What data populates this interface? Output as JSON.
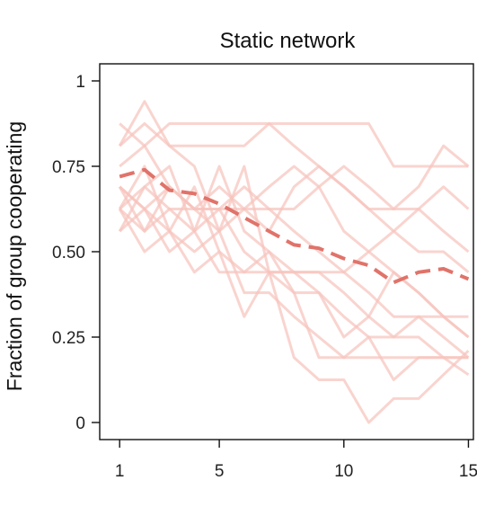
{
  "chart_data": {
    "type": "line",
    "title": "Static network",
    "xlabel": "",
    "ylabel": "Fraction of group cooperating",
    "xlim": [
      0.2,
      15.2
    ],
    "ylim": [
      -0.05,
      1.05
    ],
    "x_ticks": [
      1,
      5,
      10,
      15
    ],
    "y_ticks": [
      {
        "value": 0,
        "label": "0"
      },
      {
        "value": 0.25,
        "label": "0.25"
      },
      {
        "value": 0.5,
        "label": "0.50"
      },
      {
        "value": 0.75,
        "label": "0.75"
      },
      {
        "value": 1,
        "label": "1"
      }
    ],
    "grid": false,
    "colors": {
      "groups": "#f6c4bd",
      "mean": "#e0736a"
    },
    "x": [
      1,
      2,
      3,
      4,
      5,
      6,
      7,
      8,
      9,
      10,
      11,
      12,
      13,
      14,
      15
    ],
    "series": [
      {
        "values": [
          0.81,
          0.875,
          0.81,
          0.81,
          0.81,
          0.81,
          0.875,
          0.875,
          0.875,
          0.875,
          0.875,
          0.75,
          0.75,
          0.75,
          0.75
        ]
      },
      {
        "values": [
          0.875,
          0.81,
          0.875,
          0.875,
          0.875,
          0.875,
          0.875,
          0.81,
          0.75,
          0.69,
          0.625,
          0.625,
          0.625,
          0.69,
          0.625
        ]
      },
      {
        "values": [
          0.81,
          0.94,
          0.81,
          0.75,
          0.56,
          0.625,
          0.69,
          0.75,
          0.69,
          0.75,
          0.69,
          0.625,
          0.69,
          0.81,
          0.75
        ]
      },
      {
        "values": [
          0.75,
          0.81,
          0.69,
          0.625,
          0.69,
          0.625,
          0.56,
          0.69,
          0.75,
          0.69,
          0.625,
          0.56,
          0.625,
          0.56,
          0.5
        ]
      },
      {
        "values": [
          0.69,
          0.625,
          0.69,
          0.625,
          0.625,
          0.625,
          0.625,
          0.625,
          0.69,
          0.56,
          0.5,
          0.56,
          0.5,
          0.5,
          0.44
        ]
      },
      {
        "values": [
          0.625,
          0.69,
          0.75,
          0.56,
          0.625,
          0.69,
          0.625,
          0.56,
          0.5,
          0.44,
          0.5,
          0.44,
          0.38,
          0.31,
          0.25
        ]
      },
      {
        "values": [
          0.625,
          0.56,
          0.625,
          0.56,
          0.75,
          0.56,
          0.5,
          0.44,
          0.44,
          0.44,
          0.38,
          0.31,
          0.31,
          0.25,
          0.19
        ]
      },
      {
        "values": [
          0.56,
          0.625,
          0.56,
          0.69,
          0.5,
          0.44,
          0.5,
          0.38,
          0.38,
          0.31,
          0.25,
          0.25,
          0.31,
          0.31,
          0.25
        ]
      },
      {
        "values": [
          0.69,
          0.56,
          0.69,
          0.625,
          0.625,
          0.5,
          0.44,
          0.44,
          0.38,
          0.25,
          0.31,
          0.25,
          0.25,
          0.19,
          0.19
        ]
      },
      {
        "values": [
          0.625,
          0.5,
          0.56,
          0.5,
          0.56,
          0.38,
          0.38,
          0.31,
          0.25,
          0.19,
          0.19,
          0.19,
          0.19,
          0.19,
          0.14
        ]
      },
      {
        "values": [
          0.625,
          0.75,
          0.56,
          0.44,
          0.5,
          0.31,
          0.44,
          0.38,
          0.19,
          0.19,
          0.25,
          0.125,
          0.19,
          0.19,
          0.19
        ]
      },
      {
        "values": [
          0.69,
          0.625,
          0.5,
          0.56,
          0.44,
          0.44,
          0.44,
          0.19,
          0.125,
          0.125,
          0.0,
          0.07,
          0.07,
          0.14,
          0.21
        ]
      },
      {
        "values": [
          0.56,
          0.69,
          0.625,
          0.625,
          0.56,
          0.75,
          0.44,
          0.44,
          0.44,
          0.38,
          0.31,
          0.44,
          0.38,
          0.31,
          0.31
        ]
      }
    ],
    "mean": {
      "values": [
        0.72,
        0.74,
        0.68,
        0.67,
        0.64,
        0.6,
        0.56,
        0.52,
        0.51,
        0.48,
        0.46,
        0.41,
        0.44,
        0.45,
        0.42
      ]
    }
  }
}
